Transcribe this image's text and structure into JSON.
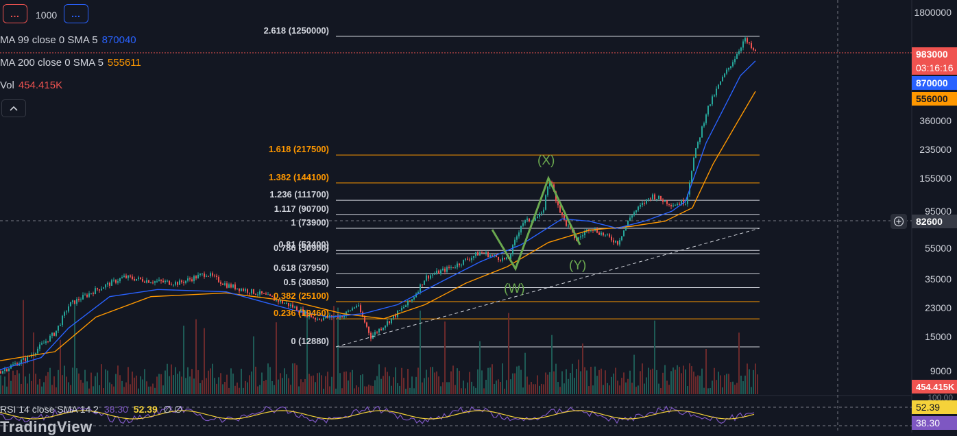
{
  "toolbar": {
    "left_btn": "…",
    "interval": "1000",
    "right_btn": "…"
  },
  "indicators": {
    "ma99": {
      "name": "MA 99 close 0 SMA 5",
      "value": "870040",
      "color": "#2962ff"
    },
    "ma200": {
      "name": "MA 200 close 0 SMA 5",
      "value": "555611",
      "color": "#ff9800"
    },
    "vol": {
      "name": "Vol",
      "value": "454.415K",
      "color": "#ef5350"
    }
  },
  "price_axis": {
    "ticks": [
      "1800000",
      "360000",
      "235000",
      "155000",
      "95000",
      "55000",
      "35000",
      "23000",
      "15000",
      "9000"
    ],
    "last_price": "983000",
    "countdown": "03:16:16",
    "ma99_tag": "870000",
    "ma200_tag": "556000",
    "crosshair_price": "82600",
    "volume_tag": "454.415K",
    "rsi_axis_tick": "100.00",
    "rsi_tag_sma": "52.39",
    "rsi_tag_value": "38.30"
  },
  "fib_levels": [
    {
      "label": "2.618 (1250000)",
      "ratio": 2.618,
      "price": 1250000,
      "color": "#d1d4dc"
    },
    {
      "label": "1.618 (217500)",
      "ratio": 1.618,
      "price": 217500,
      "color": "#ff9800"
    },
    {
      "label": "1.382 (144100)",
      "ratio": 1.382,
      "price": 144100,
      "color": "#ff9800"
    },
    {
      "label": "1.236 (111700)",
      "ratio": 1.236,
      "price": 111700,
      "color": "#d1d4dc"
    },
    {
      "label": "1.117 (90700)",
      "ratio": 1.117,
      "price": 90700,
      "color": "#d1d4dc"
    },
    {
      "label": "1 (73900)",
      "ratio": 1,
      "price": 73900,
      "color": "#d1d4dc"
    },
    {
      "label": "0.81 (53400)",
      "ratio": 0.81,
      "price": 53400,
      "color": "#d1d4dc"
    },
    {
      "label": "0.786 (50900)",
      "ratio": 0.786,
      "price": 50900,
      "color": "#d1d4dc"
    },
    {
      "label": "0.618 (37950)",
      "ratio": 0.618,
      "price": 37950,
      "color": "#d1d4dc"
    },
    {
      "label": "0.5 (30850)",
      "ratio": 0.5,
      "price": 30850,
      "color": "#d1d4dc"
    },
    {
      "label": "0.382 (25100)",
      "ratio": 0.382,
      "price": 25100,
      "color": "#ff9800"
    },
    {
      "label": "0.236 (19460)",
      "ratio": 0.236,
      "price": 19460,
      "color": "#ff9800"
    },
    {
      "label": "0 (12880)",
      "ratio": 0,
      "price": 12880,
      "color": "#d1d4dc"
    }
  ],
  "wave_labels": {
    "w": "(W)",
    "x": "(X)",
    "y": "(Y)"
  },
  "rsi": {
    "name": "RSI 14 close SMA 14 2",
    "value": "38.30",
    "sma": "52.39",
    "extra": "∅ ∅"
  },
  "branding": {
    "logo": "TradingView"
  },
  "colors": {
    "background": "#131722",
    "up": "#26a69a",
    "down": "#ef5350",
    "ma99": "#2962ff",
    "ma200": "#ff9800",
    "rsi": "#7e57c2",
    "rsi_sma": "#f5d23a",
    "wave": "#6aa84f"
  },
  "chart_data": {
    "type": "line",
    "y_scale": "log",
    "series": [
      {
        "name": "MA 99 close 0 SMA 5",
        "values": [
          9200,
          14000,
          20000,
          26000,
          28000,
          27000,
          20000,
          22000,
          33000,
          45000,
          62000,
          80000,
          78000,
          90000,
          110000,
          350000,
          870000
        ]
      },
      {
        "name": "MA 200 close 0 SMA 5",
        "values": [
          10000,
          12500,
          18000,
          24000,
          27000,
          27500,
          24000,
          21000,
          27000,
          38000,
          52000,
          70000,
          76000,
          82000,
          95000,
          200000,
          556000
        ]
      }
    ],
    "last_price": 983000
  }
}
